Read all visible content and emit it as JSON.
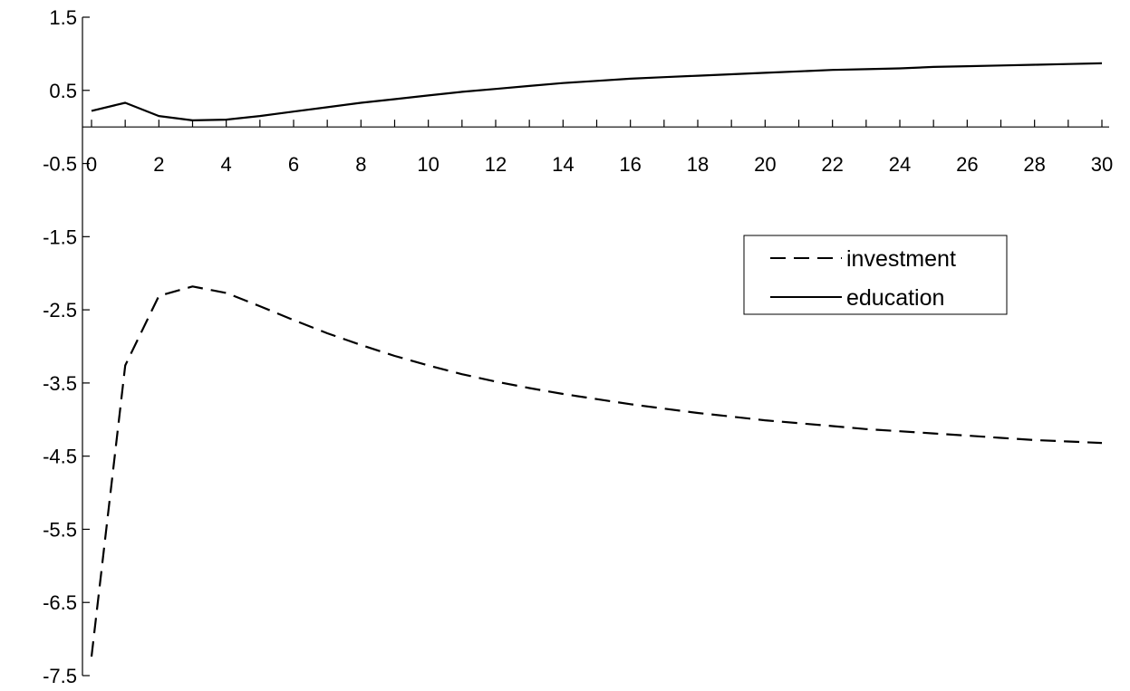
{
  "chart_data": {
    "type": "line",
    "title": "",
    "xlabel": "",
    "ylabel": "",
    "xlim": [
      0,
      30
    ],
    "ylim": [
      -7.5,
      1.5
    ],
    "grid": false,
    "legend": {
      "placement": "right"
    },
    "x_tick_labels": [
      "0",
      "2",
      "4",
      "6",
      "8",
      "10",
      "12",
      "14",
      "16",
      "18",
      "20",
      "22",
      "24",
      "26",
      "28",
      "30"
    ],
    "y_tick_labels": [
      "1.5",
      "0.5",
      "-0.5",
      "-1.5",
      "-2.5",
      "-3.5",
      "-4.5",
      "-5.5",
      "-6.5",
      "-7.5"
    ],
    "x": [
      0,
      1,
      2,
      3,
      4,
      5,
      6,
      7,
      8,
      9,
      10,
      11,
      12,
      13,
      14,
      15,
      16,
      17,
      18,
      19,
      20,
      21,
      22,
      23,
      24,
      25,
      26,
      27,
      28,
      29,
      30
    ],
    "series": [
      {
        "name": "investment",
        "style": "dashed",
        "color": "#000000",
        "values": [
          -7.24,
          -3.26,
          -2.31,
          -2.18,
          -2.27,
          -2.45,
          -2.64,
          -2.82,
          -2.98,
          -3.13,
          -3.26,
          -3.38,
          -3.48,
          -3.57,
          -3.65,
          -3.72,
          -3.79,
          -3.85,
          -3.91,
          -3.96,
          -4.01,
          -4.05,
          -4.09,
          -4.13,
          -4.16,
          -4.19,
          -4.22,
          -4.25,
          -4.28,
          -4.3,
          -4.32
        ]
      },
      {
        "name": "education",
        "style": "solid",
        "color": "#000000",
        "values": [
          0.22,
          0.33,
          0.15,
          0.09,
          0.1,
          0.15,
          0.21,
          0.27,
          0.33,
          0.38,
          0.43,
          0.48,
          0.52,
          0.56,
          0.6,
          0.63,
          0.66,
          0.68,
          0.7,
          0.72,
          0.74,
          0.76,
          0.78,
          0.79,
          0.8,
          0.82,
          0.83,
          0.84,
          0.85,
          0.86,
          0.87
        ]
      }
    ]
  }
}
